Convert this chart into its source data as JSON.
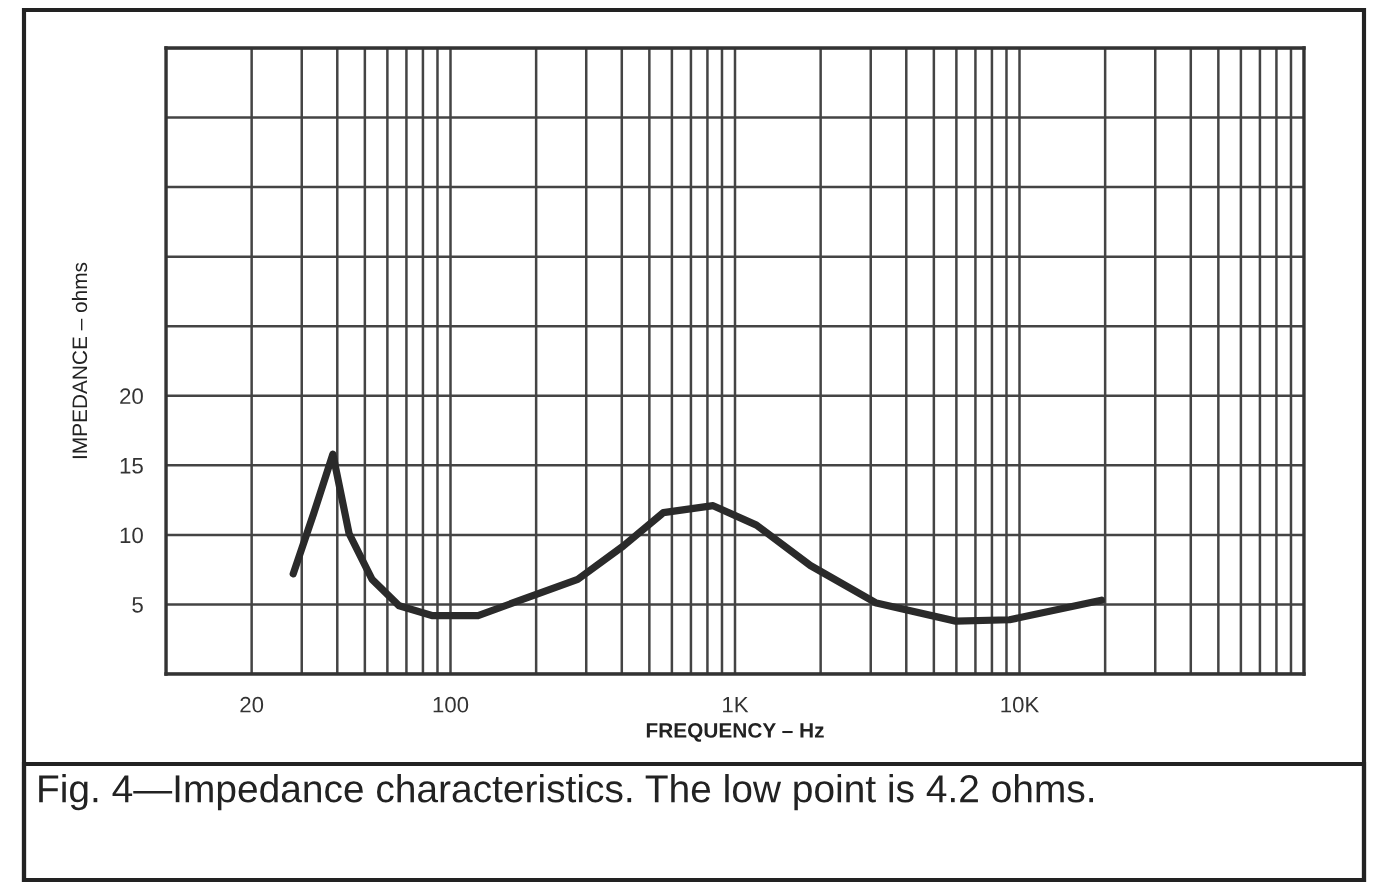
{
  "chart_data": {
    "type": "line",
    "xlabel": "FREQUENCY – Hz",
    "ylabel": "IMPEDANCE – ohms",
    "log": "x",
    "x": [
      28,
      33,
      38.6,
      44,
      53,
      66,
      86,
      125,
      280,
      405,
      560,
      838,
      1190,
      1840,
      3140,
      5970,
      9230,
      19400
    ],
    "series": [
      {
        "color": "#2a2a2a",
        "values": [
          7.2,
          11.5,
          15.8,
          10.1,
          6.8,
          4.9,
          4.2,
          4.2,
          6.8,
          9.2,
          11.6,
          12.1,
          10.7,
          7.8,
          5.1,
          3.8,
          3.9,
          5.3
        ]
      }
    ],
    "xlim": [
      10,
      100000
    ],
    "ylim": [
      0,
      45
    ],
    "xticks": [
      {
        "value": 10,
        "label": null
      },
      {
        "value": 20,
        "label": "20"
      },
      {
        "value": 30,
        "label": null
      },
      {
        "value": 40,
        "label": null
      },
      {
        "value": 50,
        "label": null
      },
      {
        "value": 60,
        "label": null
      },
      {
        "value": 70,
        "label": null
      },
      {
        "value": 80,
        "label": null
      },
      {
        "value": 90,
        "label": null
      },
      {
        "value": 100,
        "label": "100"
      },
      {
        "value": 200,
        "label": null
      },
      {
        "value": 300,
        "label": null
      },
      {
        "value": 400,
        "label": null
      },
      {
        "value": 500,
        "label": null
      },
      {
        "value": 600,
        "label": null
      },
      {
        "value": 700,
        "label": null
      },
      {
        "value": 800,
        "label": null
      },
      {
        "value": 900,
        "label": null
      },
      {
        "value": 1000,
        "label": "1K"
      },
      {
        "value": 2000,
        "label": null
      },
      {
        "value": 3000,
        "label": null
      },
      {
        "value": 4000,
        "label": null
      },
      {
        "value": 5000,
        "label": null
      },
      {
        "value": 6000,
        "label": null
      },
      {
        "value": 7000,
        "label": null
      },
      {
        "value": 8000,
        "label": null
      },
      {
        "value": 9000,
        "label": null
      },
      {
        "value": 10000,
        "label": "10K"
      },
      {
        "value": 20000,
        "label": null
      },
      {
        "value": 30000,
        "label": null
      },
      {
        "value": 40000,
        "label": null
      },
      {
        "value": 50000,
        "label": null
      },
      {
        "value": 60000,
        "label": null
      },
      {
        "value": 70000,
        "label": null
      },
      {
        "value": 80000,
        "label": null
      },
      {
        "value": 90000,
        "label": null
      },
      {
        "value": 100000,
        "label": null
      }
    ],
    "yticks": [
      {
        "value": 0,
        "label": null
      },
      5,
      10,
      15,
      20,
      {
        "value": 25,
        "label": null
      },
      {
        "value": 30,
        "label": null
      },
      {
        "value": 35,
        "label": null
      },
      {
        "value": 40,
        "label": null
      },
      {
        "value": 45,
        "label": null
      }
    ],
    "grid": true,
    "marker": "none",
    "line_style": "solid",
    "annotations": [
      "Fig. 4—Impedance characteristics. The low point is 4.2 ohms."
    ]
  }
}
